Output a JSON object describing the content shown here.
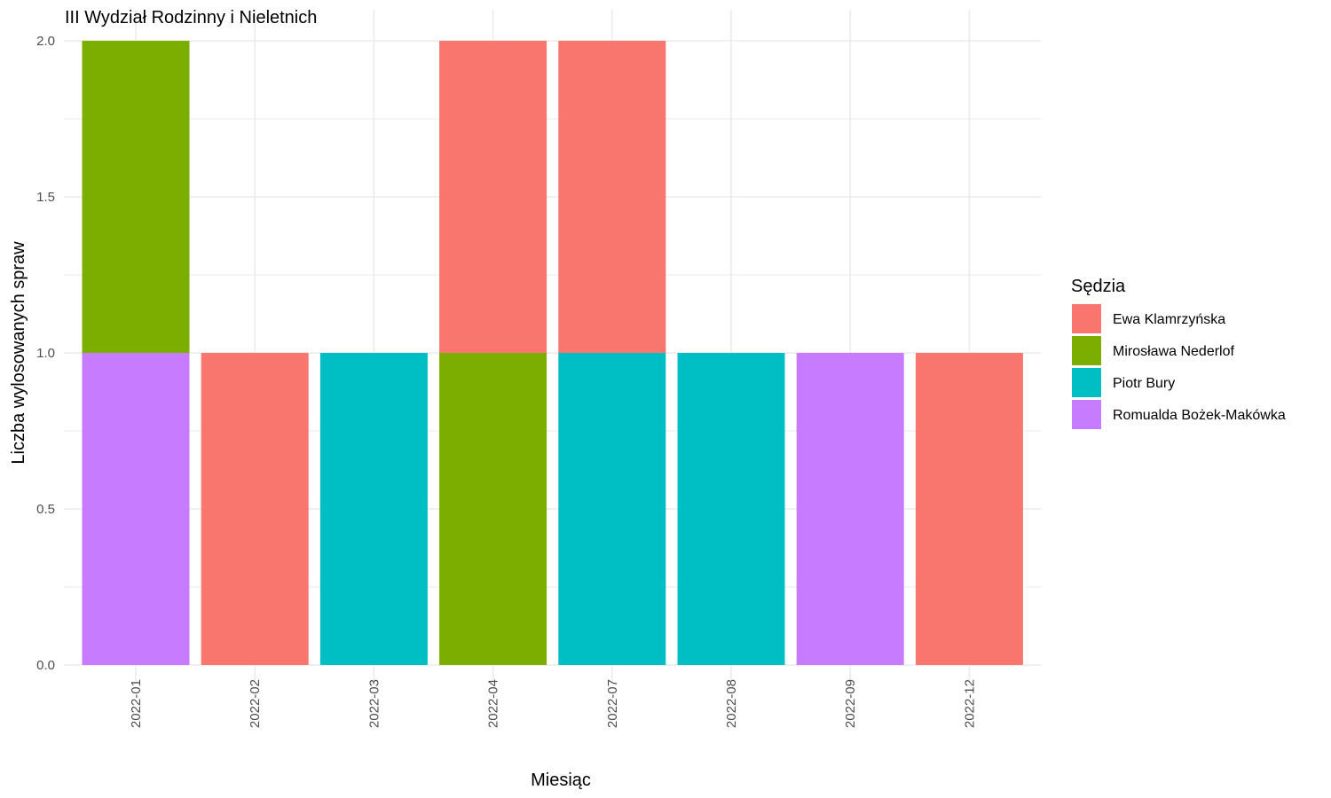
{
  "chart_data": {
    "type": "bar",
    "stacked": true,
    "title": "III Wydział Rodzinny i Nieletnich",
    "xlabel": "Miesiąc",
    "ylabel": "Liczba wylosowanych spraw",
    "ylim": [
      0,
      2
    ],
    "yticks": [
      "0.0",
      "0.5",
      "1.0",
      "1.5",
      "2.0"
    ],
    "ytick_values": [
      0,
      0.5,
      1,
      1.5,
      2
    ],
    "categories": [
      "2022-01",
      "2022-02",
      "2022-03",
      "2022-04",
      "2022-07",
      "2022-08",
      "2022-09",
      "2022-12"
    ],
    "legend_title": "Sędzia",
    "legend_position": "right",
    "grid": true,
    "series": [
      {
        "name": "Ewa Klamrzyńska",
        "color": "#F8766D",
        "values": [
          0,
          1,
          0,
          1,
          1,
          0,
          0,
          1
        ]
      },
      {
        "name": "Mirosława Nederlof",
        "color": "#7CAE00",
        "values": [
          1,
          0,
          0,
          1,
          0,
          0,
          0,
          0
        ]
      },
      {
        "name": "Piotr Bury",
        "color": "#00BFC4",
        "values": [
          0,
          0,
          1,
          0,
          1,
          1,
          0,
          0
        ]
      },
      {
        "name": "Romualda Bożek-Makówka",
        "color": "#C77CFF",
        "values": [
          1,
          0,
          0,
          0,
          0,
          0,
          1,
          0
        ]
      }
    ]
  }
}
